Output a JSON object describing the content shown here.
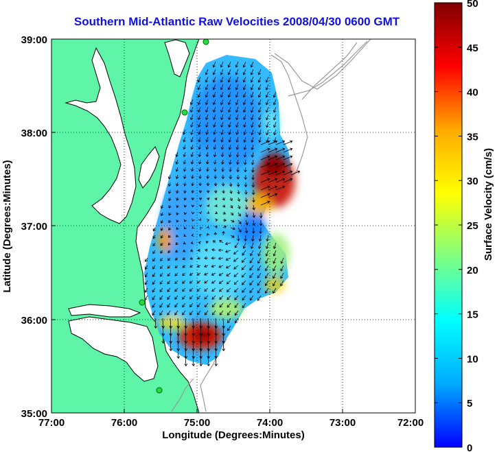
{
  "title": "Southern Mid-Atlantic Raw Velocities 2008/04/30 0600 GMT",
  "x_axis": {
    "label": "Longitude (Degrees:Minutes)",
    "ticks": [
      "77:00",
      "76:00",
      "75:00",
      "74:00",
      "73:00",
      "72:00"
    ]
  },
  "y_axis": {
    "label": "Latitude (Degrees:Minutes)",
    "ticks": [
      "39:00",
      "38:00",
      "37:00",
      "36:00",
      "35:00"
    ]
  },
  "colorbar": {
    "label": "Surface Velocity (cm/s)",
    "ticks": [
      "50",
      "45",
      "40",
      "35",
      "30",
      "25",
      "20",
      "15",
      "10",
      "5",
      "0"
    ],
    "min": 0,
    "max": 50,
    "colormap": [
      "#0000ff",
      "#00aaff",
      "#00ffff",
      "#80ff80",
      "#ffff00",
      "#ffaa00",
      "#ff0000",
      "#800000"
    ]
  },
  "colors": {
    "land": "#5ef5a8",
    "water": "#ffffff",
    "coastline": "#000000",
    "bathymetry": "#999999"
  },
  "map_extent": {
    "lon_range": [
      -77.0,
      -72.0
    ],
    "lat_range": [
      35.0,
      39.0
    ],
    "grid": true
  },
  "stations": [
    "station-north",
    "station-mid",
    "station-south-1",
    "station-south-2"
  ]
}
